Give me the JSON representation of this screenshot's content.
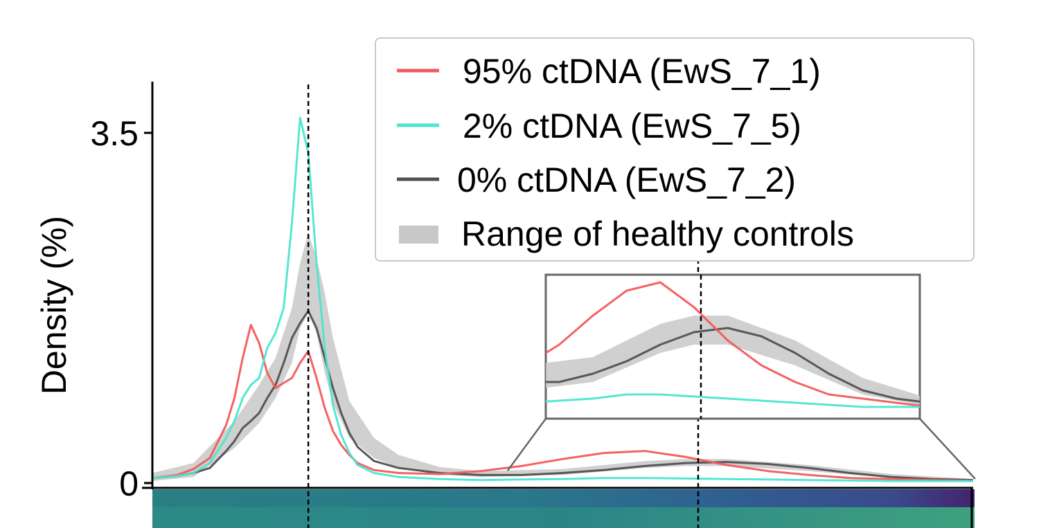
{
  "chart_data": {
    "type": "line",
    "title": "",
    "xlabel": "",
    "ylabel": "Density (%)",
    "yticks": [
      {
        "value": 0,
        "label": "0"
      },
      {
        "value": 3.5,
        "label": "3.5"
      }
    ],
    "ylim": [
      0,
      4.0
    ],
    "xlim": [
      0,
      1
    ],
    "reference_lines_x": [
      0.19,
      0.665
    ],
    "grid": false,
    "legend_position": "top-right",
    "legend": [
      {
        "label": "95% ctDNA (EwS_7_1)",
        "color": "#f4595a",
        "kind": "line"
      },
      {
        "label": "2% ctDNA (EwS_7_5)",
        "color": "#4be6cf",
        "kind": "line"
      },
      {
        "label": "0% ctDNA (EwS_7_2)",
        "color": "#505050",
        "kind": "line"
      },
      {
        "label": "Range of healthy controls",
        "color": "#c8c8c8",
        "kind": "band"
      }
    ],
    "series": [
      {
        "name": "95% ctDNA (EwS_7_1)",
        "color": "#f4595a",
        "x": [
          0,
          0.03,
          0.05,
          0.07,
          0.09,
          0.1,
          0.11,
          0.12,
          0.13,
          0.14,
          0.15,
          0.16,
          0.17,
          0.18,
          0.19,
          0.2,
          0.21,
          0.22,
          0.23,
          0.24,
          0.25,
          0.27,
          0.3,
          0.35,
          0.4,
          0.45,
          0.5,
          0.55,
          0.6,
          0.65,
          0.7,
          0.75,
          0.8,
          0.85,
          0.9,
          0.95,
          1.0
        ],
        "y": [
          0.05,
          0.08,
          0.14,
          0.25,
          0.58,
          0.85,
          1.25,
          1.58,
          1.4,
          1.1,
          0.95,
          1.0,
          1.05,
          1.2,
          1.32,
          1.05,
          0.75,
          0.52,
          0.38,
          0.28,
          0.2,
          0.13,
          0.1,
          0.09,
          0.12,
          0.17,
          0.24,
          0.3,
          0.32,
          0.26,
          0.18,
          0.12,
          0.08,
          0.05,
          0.04,
          0.03,
          0.02
        ]
      },
      {
        "name": "2% ctDNA (EwS_7_5)",
        "color": "#4be6cf",
        "x": [
          0,
          0.03,
          0.05,
          0.07,
          0.09,
          0.1,
          0.11,
          0.12,
          0.13,
          0.14,
          0.15,
          0.16,
          0.17,
          0.18,
          0.19,
          0.2,
          0.21,
          0.22,
          0.23,
          0.24,
          0.25,
          0.27,
          0.3,
          0.35,
          0.4,
          0.45,
          0.5,
          0.55,
          0.6,
          0.65,
          0.7,
          0.75,
          0.8,
          0.85,
          0.9,
          0.95,
          1.0
        ],
        "y": [
          0.05,
          0.07,
          0.1,
          0.2,
          0.45,
          0.62,
          0.85,
          0.98,
          1.05,
          1.35,
          1.5,
          1.75,
          2.6,
          3.65,
          3.3,
          2.2,
          1.35,
          0.78,
          0.48,
          0.3,
          0.18,
          0.1,
          0.06,
          0.04,
          0.03,
          0.035,
          0.04,
          0.05,
          0.05,
          0.045,
          0.04,
          0.035,
          0.03,
          0.025,
          0.02,
          0.02,
          0.02
        ]
      },
      {
        "name": "0% ctDNA (EwS_7_2)",
        "color": "#505050",
        "x": [
          0,
          0.03,
          0.05,
          0.07,
          0.09,
          0.1,
          0.11,
          0.12,
          0.13,
          0.14,
          0.15,
          0.16,
          0.17,
          0.18,
          0.19,
          0.2,
          0.21,
          0.22,
          0.23,
          0.24,
          0.25,
          0.27,
          0.3,
          0.35,
          0.4,
          0.45,
          0.5,
          0.55,
          0.6,
          0.65,
          0.7,
          0.75,
          0.8,
          0.85,
          0.9,
          0.95,
          1.0
        ],
        "y": [
          0.05,
          0.07,
          0.1,
          0.15,
          0.32,
          0.42,
          0.55,
          0.62,
          0.7,
          0.85,
          0.98,
          1.2,
          1.45,
          1.6,
          1.72,
          1.55,
          1.25,
          0.95,
          0.7,
          0.5,
          0.36,
          0.22,
          0.15,
          0.1,
          0.08,
          0.08,
          0.1,
          0.13,
          0.17,
          0.2,
          0.21,
          0.19,
          0.15,
          0.1,
          0.06,
          0.04,
          0.03
        ]
      }
    ],
    "healthy_band": {
      "x": [
        0,
        0.05,
        0.1,
        0.13,
        0.15,
        0.17,
        0.18,
        0.19,
        0.2,
        0.21,
        0.22,
        0.24,
        0.27,
        0.3,
        0.35,
        0.4,
        0.5,
        0.6,
        0.65,
        0.7,
        0.8,
        0.9,
        1.0
      ],
      "lower": [
        0.02,
        0.06,
        0.35,
        0.6,
        0.85,
        1.2,
        1.55,
        1.7,
        1.5,
        1.1,
        0.8,
        0.45,
        0.25,
        0.15,
        0.08,
        0.06,
        0.08,
        0.15,
        0.17,
        0.17,
        0.12,
        0.05,
        0.02
      ],
      "upper": [
        0.1,
        0.2,
        0.62,
        0.98,
        1.25,
        1.75,
        2.2,
        2.5,
        2.25,
        1.9,
        1.45,
        0.82,
        0.45,
        0.28,
        0.16,
        0.12,
        0.14,
        0.22,
        0.24,
        0.24,
        0.18,
        0.09,
        0.04
      ]
    },
    "inset": {
      "x_range": [
        0.43,
        0.985
      ],
      "y_range": [
        0,
        0.33
      ]
    }
  }
}
